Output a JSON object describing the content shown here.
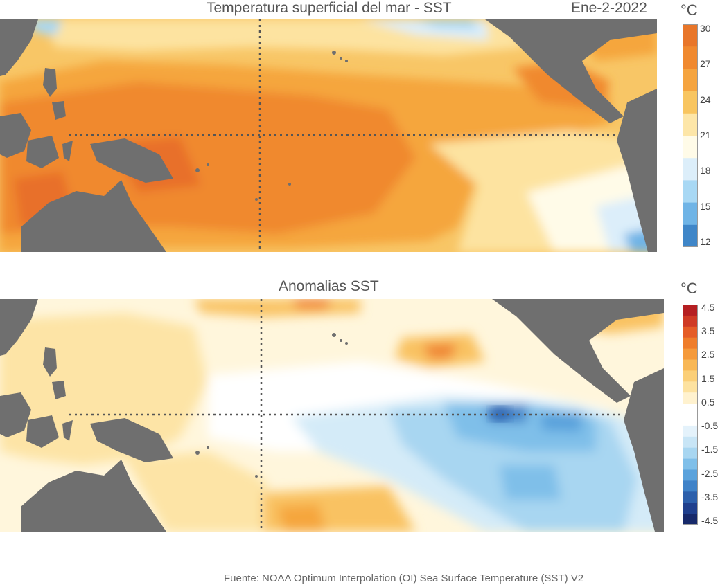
{
  "panel_sst": {
    "title": "Temperatura superficial del mar - SST",
    "date": "Ene-2-2022",
    "unit": "°C",
    "colorbar_labels": [
      "30",
      "27",
      "24",
      "21",
      "18",
      "15",
      "12"
    ],
    "colorbar_colors": [
      "#e8762a",
      "#f0892f",
      "#f5a43f",
      "#f8c560",
      "#fde6a8",
      "#fffbe8",
      "#dceefa",
      "#a8d8f4",
      "#6fb4e6",
      "#3f86c8"
    ]
  },
  "panel_anom": {
    "title": "Anomalias SST",
    "unit": "°C",
    "colorbar_labels": [
      "4.5",
      "3.5",
      "2.5",
      "1.5",
      "0.5",
      "-0.5",
      "-1.5",
      "-2.5",
      "-3.5",
      "-4.5"
    ],
    "colorbar_colors": [
      "#b51f22",
      "#cf3a25",
      "#e55c27",
      "#ef7d2b",
      "#f59a3b",
      "#f8b755",
      "#fbcf78",
      "#fde2a0",
      "#fff2cf",
      "#ffffff",
      "#ffffff",
      "#e4f2fb",
      "#c8e5f6",
      "#a8d6f1",
      "#7fbfe9",
      "#5aa2dc",
      "#3f82c8",
      "#2c5fab",
      "#1f3f8d",
      "#17296a"
    ]
  },
  "colors": {
    "land": "#6f6f6f",
    "gridline": "#555555"
  },
  "footer": {
    "source": "Fuente: NOAA Optimum Interpolation (OI) Sea Surface Temperature (SST) V2"
  }
}
